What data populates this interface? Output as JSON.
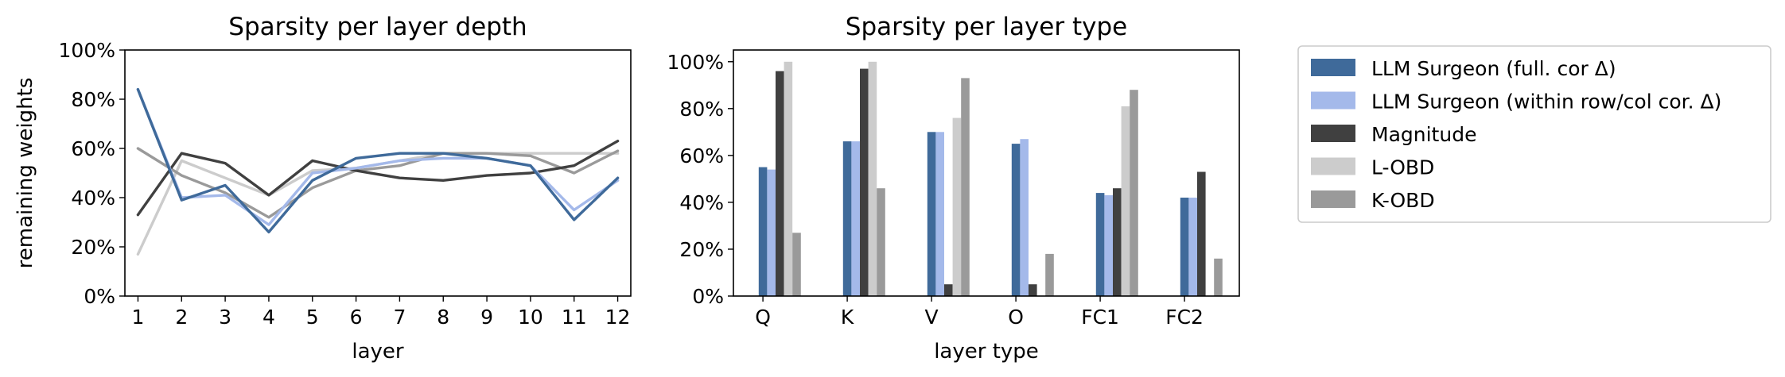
{
  "colors": {
    "llm_full": "#3F6A9A",
    "llm_within": "#A4B9EA",
    "magnitude": "#404040",
    "lobd": "#CCCCCC",
    "kobd": "#9A9A9A"
  },
  "chart_data": [
    {
      "type": "line",
      "title": "Sparsity per layer depth",
      "xlabel": "layer",
      "ylabel": "remaining weights",
      "x": [
        1,
        2,
        3,
        4,
        5,
        6,
        7,
        8,
        9,
        10,
        11,
        12
      ],
      "ylim": [
        0,
        100
      ],
      "yticks": [
        "0%",
        "20%",
        "40%",
        "60%",
        "80%",
        "100%"
      ],
      "grid": false,
      "series": [
        {
          "name": "L-OBD",
          "color_key": "lobd",
          "values": [
            17,
            55,
            48,
            41,
            51,
            52,
            55,
            58,
            58,
            58,
            58,
            58
          ]
        },
        {
          "name": "K-OBD",
          "color_key": "kobd",
          "values": [
            60,
            49,
            42,
            32,
            44,
            51,
            53,
            58,
            58,
            57,
            50,
            59
          ]
        },
        {
          "name": "Magnitude",
          "color_key": "magnitude",
          "values": [
            33,
            58,
            54,
            41,
            55,
            51,
            48,
            47,
            49,
            50,
            53,
            63
          ]
        },
        {
          "name": "LLM Surgeon (within row/col cor. Δ)",
          "color_key": "llm_within",
          "values": [
            84,
            40,
            41,
            29,
            50,
            52,
            55,
            56,
            56,
            53,
            35,
            47
          ]
        },
        {
          "name": "LLM Surgeon (full. cor Δ)",
          "color_key": "llm_full",
          "values": [
            84,
            39,
            45,
            26,
            47,
            56,
            58,
            58,
            56,
            53,
            31,
            48
          ]
        }
      ]
    },
    {
      "type": "bar",
      "title": "Sparsity per layer type",
      "xlabel": "layer type",
      "ylabel": "",
      "categories": [
        "Q",
        "K",
        "V",
        "O",
        "FC1",
        "FC2"
      ],
      "ylim": [
        0,
        105
      ],
      "yticks": [
        "0%",
        "20%",
        "40%",
        "60%",
        "80%",
        "100%"
      ],
      "grid": false,
      "series": [
        {
          "name": "LLM Surgeon (full. cor Δ)",
          "color_key": "llm_full",
          "values": [
            55,
            66,
            70,
            65,
            44,
            42
          ]
        },
        {
          "name": "LLM Surgeon (within row/col cor. Δ)",
          "color_key": "llm_within",
          "values": [
            54,
            66,
            70,
            67,
            43,
            42
          ]
        },
        {
          "name": "Magnitude",
          "color_key": "magnitude",
          "values": [
            96,
            97,
            5,
            5,
            46,
            53
          ]
        },
        {
          "name": "L-OBD",
          "color_key": "lobd",
          "values": [
            100,
            100,
            76,
            0,
            81,
            0
          ]
        },
        {
          "name": "K-OBD",
          "color_key": "kobd",
          "values": [
            27,
            46,
            93,
            18,
            88,
            16
          ]
        }
      ]
    }
  ],
  "legend": {
    "placement": "right",
    "items": [
      {
        "label": "LLM Surgeon (full. cor Δ)",
        "color_key": "llm_full"
      },
      {
        "label": "LLM Surgeon (within row/col cor. Δ)",
        "color_key": "llm_within"
      },
      {
        "label": "Magnitude",
        "color_key": "magnitude"
      },
      {
        "label": "L-OBD",
        "color_key": "lobd"
      },
      {
        "label": "K-OBD",
        "color_key": "kobd"
      }
    ]
  }
}
